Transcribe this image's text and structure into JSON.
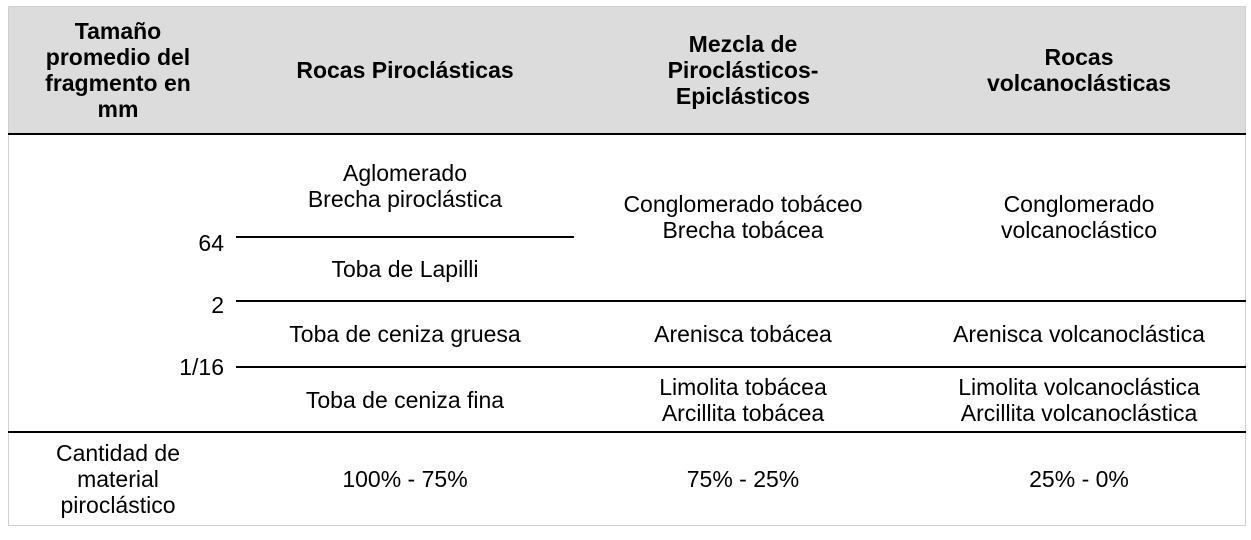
{
  "header": {
    "col1": [
      "Tamaño",
      "promedio del",
      "fragmento en",
      "mm"
    ],
    "col2": [
      "Rocas Piroclásticas"
    ],
    "col3": [
      "Mezcla de",
      "Piroclásticos-",
      "Epiclásticos"
    ],
    "col4": [
      "Rocas",
      "volcanoclásticas"
    ]
  },
  "size_ticks": [
    "64",
    "2",
    "1/16"
  ],
  "piroclasticas": {
    "coarse": [
      "Aglomerado",
      "Brecha piroclástica"
    ],
    "lapilli": "Toba de Lapilli",
    "ceniza_gruesa": "Toba de ceniza gruesa",
    "ceniza_fina": "Toba de ceniza fina"
  },
  "mezcla": {
    "coarse": [
      "Conglomerado tobáceo",
      "Brecha tobácea"
    ],
    "medium": "Arenisca tobácea",
    "fine": [
      "Limolita tobácea",
      "Arcillita tobácea"
    ]
  },
  "volcanoclasticas": {
    "coarse": [
      "Conglomerado",
      "volcanoclástico"
    ],
    "medium": "Arenisca volcanoclástica",
    "fine": [
      "Limolita volcanoclástica",
      "Arcillita volcanoclástica"
    ]
  },
  "footer": {
    "label": [
      "Cantidad de",
      "material",
      "piroclástico"
    ],
    "piroclasticas": "100% - 75%",
    "mezcla": "75% - 25%",
    "volcanoclasticas": "25% - 0%"
  }
}
